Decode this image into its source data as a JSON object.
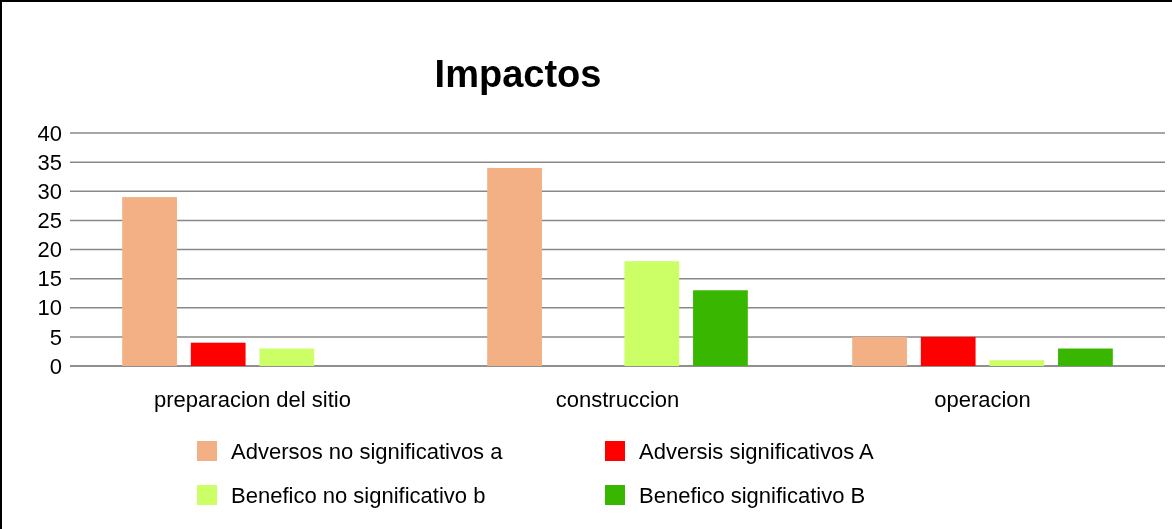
{
  "chart_data": {
    "type": "bar",
    "title": "Impactos",
    "categories": [
      "preparacion del sitio",
      "construccion",
      "operacion"
    ],
    "series": [
      {
        "name": "Adversos no significativos a",
        "color": "#f3b084",
        "values": [
          29,
          34,
          5
        ]
      },
      {
        "name": "Adversis significativos A",
        "color": "#ff0000",
        "values": [
          4,
          null,
          5
        ]
      },
      {
        "name": "Benefico no significativo b",
        "color": "#ccff66",
        "values": [
          3,
          18,
          1
        ]
      },
      {
        "name": "Benefico significativo B",
        "color": "#38b600",
        "values": [
          null,
          13,
          3
        ]
      }
    ],
    "ylim": [
      0,
      40
    ],
    "yticks": [
      0,
      5,
      10,
      15,
      20,
      25,
      30,
      35,
      40
    ],
    "grid": "y",
    "legend": "bottom"
  }
}
